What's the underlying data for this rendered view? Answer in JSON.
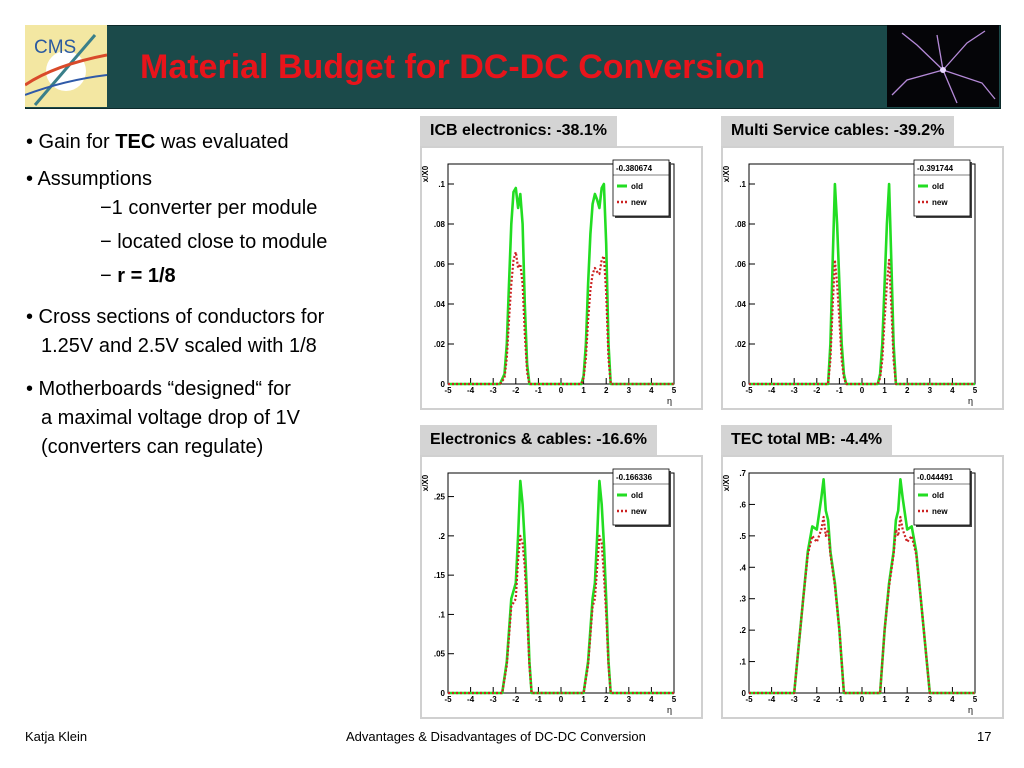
{
  "header": {
    "logo_text": "CMS",
    "title": "Material Budget for DC-DC Conversion"
  },
  "bullets": {
    "b1_prefix": "• Gain for ",
    "b1_bold": "TEC",
    "b1_suffix": " was evaluated",
    "b2": "• Assumptions",
    "s1": "−1 converter per module",
    "s2": "− located close to module",
    "s3_prefix": "− ",
    "s3_bold": "r = 1/8",
    "b3_line1": "• Cross sections of conductors for",
    "b3_line2": "1.25V and 2.5V scaled with 1/8",
    "b4_line1": "• Motherboards “designed“ for",
    "b4_line2": "a maximal voltage drop of 1V",
    "b4_line3": "(converters can regulate)"
  },
  "panels": {
    "p1_label": "ICB electronics: -38.1%",
    "p2_label": "Multi Service cables: -39.2%",
    "p3_label": "Electronics & cables: -16.6%",
    "p4_label": "TEC total MB: -4.4%"
  },
  "colors": {
    "old": "#22dd22",
    "new": "#cc2222",
    "title": "#e8141b",
    "banner": "#1b4a4a"
  },
  "chart_data": [
    {
      "type": "line",
      "title": "ICB electronics: -38.1%",
      "ylabel": "x/X0",
      "xlabel": "η",
      "legend_title": "-0.380674",
      "xlim": [
        -5,
        5
      ],
      "ylim": [
        0,
        0.11
      ],
      "yticks": [
        0,
        0.02,
        0.04,
        0.06,
        0.08,
        0.1
      ],
      "x": [
        -2.7,
        -2.5,
        -2.4,
        -2.3,
        -2.2,
        -2.1,
        -2.0,
        -1.9,
        -1.8,
        -1.7,
        -1.6,
        -1.5,
        -1.4,
        0.9,
        1.0,
        1.1,
        1.2,
        1.3,
        1.4,
        1.5,
        1.6,
        1.7,
        1.8,
        1.9,
        2.0,
        2.1,
        2.2
      ],
      "series": [
        {
          "name": "old",
          "values": [
            0,
            0.005,
            0.02,
            0.05,
            0.08,
            0.096,
            0.098,
            0.088,
            0.095,
            0.08,
            0.04,
            0.01,
            0,
            0,
            0.004,
            0.02,
            0.05,
            0.075,
            0.09,
            0.095,
            0.092,
            0.088,
            0.098,
            0.1,
            0.07,
            0.02,
            0
          ]
        },
        {
          "name": "new",
          "values": [
            0,
            0.003,
            0.013,
            0.032,
            0.05,
            0.062,
            0.066,
            0.058,
            0.06,
            0.05,
            0.025,
            0.006,
            0,
            0,
            0.003,
            0.013,
            0.032,
            0.047,
            0.055,
            0.058,
            0.056,
            0.055,
            0.062,
            0.064,
            0.045,
            0.013,
            0
          ]
        }
      ]
    },
    {
      "type": "line",
      "title": "Multi Service cables: -39.2%",
      "ylabel": "x/X0",
      "xlabel": "η",
      "legend_title": "-0.391744",
      "xlim": [
        -5,
        5
      ],
      "ylim": [
        0,
        0.11
      ],
      "yticks": [
        0,
        0.02,
        0.04,
        0.06,
        0.08,
        0.1
      ],
      "x": [
        -1.5,
        -1.4,
        -1.3,
        -1.2,
        -1.1,
        -1.0,
        -0.9,
        -0.8,
        -0.7,
        0.7,
        0.8,
        0.9,
        1.0,
        1.1,
        1.2,
        1.3,
        1.4,
        1.5
      ],
      "series": [
        {
          "name": "old",
          "values": [
            0,
            0.02,
            0.06,
            0.1,
            0.08,
            0.05,
            0.02,
            0.005,
            0,
            0,
            0.005,
            0.02,
            0.05,
            0.08,
            0.1,
            0.06,
            0.02,
            0
          ]
        },
        {
          "name": "new",
          "values": [
            0,
            0.012,
            0.038,
            0.062,
            0.05,
            0.032,
            0.012,
            0.003,
            0,
            0,
            0.003,
            0.012,
            0.032,
            0.05,
            0.062,
            0.038,
            0.012,
            0
          ]
        }
      ]
    },
    {
      "type": "line",
      "title": "Electronics & cables: -16.6%",
      "ylabel": "x/X0",
      "xlabel": "η",
      "legend_title": "-0.166336",
      "xlim": [
        -5,
        5
      ],
      "ylim": [
        0,
        0.28
      ],
      "yticks": [
        0,
        0.05,
        0.1,
        0.15,
        0.2,
        0.25
      ],
      "x": [
        -2.6,
        -2.4,
        -2.2,
        -2.0,
        -1.9,
        -1.8,
        -1.7,
        -1.6,
        -1.5,
        -1.4,
        -1.3,
        1.0,
        1.2,
        1.4,
        1.5,
        1.6,
        1.7,
        1.8,
        1.9,
        2.0,
        2.1,
        2.2
      ],
      "series": [
        {
          "name": "old",
          "values": [
            0,
            0.04,
            0.12,
            0.14,
            0.2,
            0.27,
            0.24,
            0.19,
            0.12,
            0.04,
            0,
            0,
            0.04,
            0.12,
            0.14,
            0.2,
            0.27,
            0.24,
            0.19,
            0.12,
            0.04,
            0
          ]
        },
        {
          "name": "new",
          "values": [
            0,
            0.035,
            0.11,
            0.12,
            0.17,
            0.2,
            0.19,
            0.16,
            0.1,
            0.035,
            0,
            0,
            0.035,
            0.11,
            0.12,
            0.16,
            0.2,
            0.19,
            0.15,
            0.1,
            0.035,
            0
          ]
        }
      ]
    },
    {
      "type": "line",
      "title": "TEC total MB: -4.4%",
      "ylabel": "x/X0",
      "xlabel": "η",
      "legend_title": "-0.044491",
      "xlim": [
        -5,
        5
      ],
      "ylim": [
        0,
        0.7
      ],
      "yticks": [
        0,
        0.1,
        0.2,
        0.3,
        0.4,
        0.5,
        0.6,
        0.7
      ],
      "x": [
        -3.0,
        -2.8,
        -2.6,
        -2.4,
        -2.2,
        -2.0,
        -1.8,
        -1.7,
        -1.6,
        -1.5,
        -1.4,
        -1.2,
        -1.0,
        -0.8,
        0.8,
        1.0,
        1.2,
        1.4,
        1.5,
        1.6,
        1.7,
        1.8,
        2.0,
        2.2,
        2.4,
        2.6,
        2.8,
        3.0
      ],
      "series": [
        {
          "name": "old",
          "values": [
            0,
            0.15,
            0.3,
            0.45,
            0.53,
            0.52,
            0.62,
            0.68,
            0.58,
            0.55,
            0.45,
            0.35,
            0.2,
            0,
            0,
            0.2,
            0.35,
            0.45,
            0.55,
            0.58,
            0.68,
            0.62,
            0.52,
            0.53,
            0.45,
            0.3,
            0.15,
            0
          ]
        },
        {
          "name": "new",
          "values": [
            0,
            0.15,
            0.3,
            0.44,
            0.5,
            0.48,
            0.52,
            0.56,
            0.5,
            0.52,
            0.44,
            0.34,
            0.2,
            0,
            0,
            0.2,
            0.34,
            0.44,
            0.52,
            0.5,
            0.56,
            0.52,
            0.48,
            0.5,
            0.44,
            0.3,
            0.15,
            0
          ]
        }
      ]
    }
  ],
  "footer": {
    "author": "Katja Klein",
    "talk_title": "Advantages & Disadvantages of DC-DC Conversion",
    "page": "17"
  }
}
